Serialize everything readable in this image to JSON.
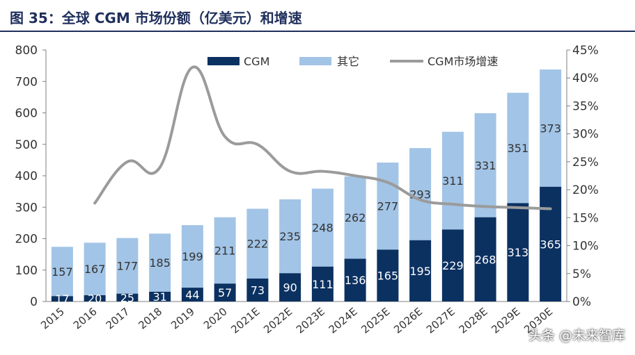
{
  "title": "图 35：全球 CGM 市场份额（亿美元）和增速",
  "watermark": "头条 @未来智库",
  "colors": {
    "cgm": "#0b3161",
    "other": "#a2c4e6",
    "growth": "#9b9b9b",
    "title": "#1f2f5c"
  },
  "chart_data": {
    "type": "bar",
    "stacked": true,
    "categories": [
      "2015",
      "2016",
      "2017",
      "2018",
      "2019",
      "2020",
      "2021E",
      "2022E",
      "2023E",
      "2024E",
      "2025E",
      "2026E",
      "2027E",
      "2028E",
      "2029E",
      "2030E"
    ],
    "series": [
      {
        "name": "CGM",
        "values": [
          17,
          20,
          25,
          31,
          44,
          57,
          73,
          90,
          111,
          136,
          165,
          195,
          229,
          268,
          313,
          365
        ]
      },
      {
        "name": "其它",
        "values": [
          157,
          167,
          177,
          185,
          199,
          211,
          222,
          235,
          248,
          262,
          277,
          293,
          311,
          331,
          351,
          373
        ]
      }
    ],
    "line_series": {
      "name": "CGM市场增速",
      "axis": "right",
      "values": [
        null,
        17.6,
        25.0,
        24.0,
        41.9,
        29.5,
        28.1,
        23.3,
        23.3,
        22.5,
        21.3,
        18.2,
        17.4,
        17.0,
        16.8,
        16.6
      ]
    },
    "y_left": {
      "min": 0,
      "max": 800,
      "ticks": [
        "0",
        "100",
        "200",
        "300",
        "400",
        "500",
        "600",
        "700",
        "800"
      ]
    },
    "y_right": {
      "min": 0,
      "max": 45,
      "ticks": [
        "0%",
        "5%",
        "10%",
        "15%",
        "20%",
        "25%",
        "30%",
        "35%",
        "40%",
        "45%"
      ]
    },
    "legend_position": "top",
    "grid": false
  }
}
